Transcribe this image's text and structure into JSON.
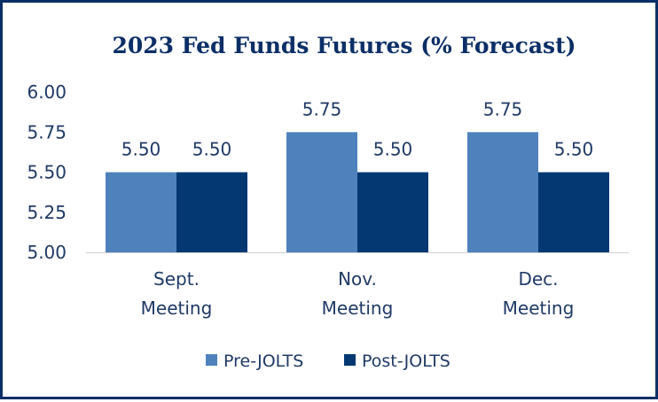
{
  "colors": {
    "border": "#0b2f66",
    "title": "#0b2f66",
    "text": "#1f3a66",
    "pre": "#4f81bd",
    "post": "#043873",
    "axis": "#d0d0d0"
  },
  "chart_data": {
    "type": "bar",
    "title": "2023 Fed Funds Futures (% Forecast)",
    "xlabel": "",
    "ylabel": "",
    "ylim": [
      5.0,
      6.0
    ],
    "y_ticks": [
      "6.00",
      "5.75",
      "5.50",
      "5.25",
      "5.00"
    ],
    "y_tick_values": [
      6.0,
      5.75,
      5.5,
      5.25,
      5.0
    ],
    "categories": [
      [
        "Sept.",
        "Meeting"
      ],
      [
        "Nov.",
        "Meeting"
      ],
      [
        "Dec.",
        "Meeting"
      ]
    ],
    "series": [
      {
        "name": "Pre-JOLTS",
        "color": "#4f81bd",
        "values": [
          5.5,
          5.75,
          5.75
        ],
        "labels": [
          "5.50",
          "5.75",
          "5.75"
        ]
      },
      {
        "name": "Post-JOLTS",
        "color": "#043873",
        "values": [
          5.5,
          5.5,
          5.5
        ],
        "labels": [
          "5.50",
          "5.50",
          "5.50"
        ]
      }
    ],
    "grid": false,
    "legend_position": "bottom"
  }
}
